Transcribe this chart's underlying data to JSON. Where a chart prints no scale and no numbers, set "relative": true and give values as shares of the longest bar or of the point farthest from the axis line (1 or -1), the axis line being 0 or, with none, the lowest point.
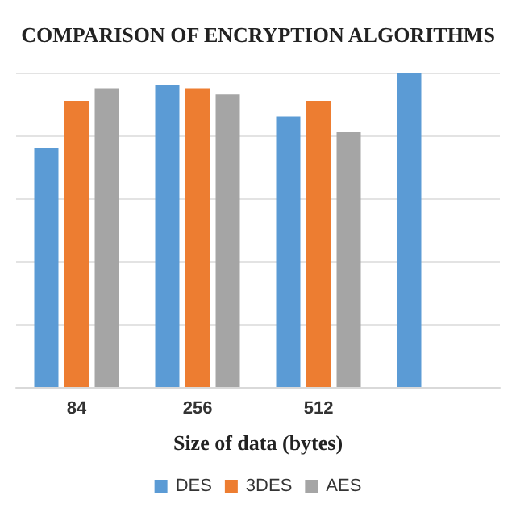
{
  "chart_data": {
    "type": "bar",
    "title": "COMPARISON OF ENCRYPTION ALGORITHMS",
    "xlabel": "Size of data (bytes)",
    "categories": [
      "84",
      "256",
      "512",
      null
    ],
    "relative": true,
    "grid": "y",
    "legend": "bottom",
    "series": [
      {
        "name": "DES",
        "color": "#5b9bd5",
        "values": [
          0.76,
          0.96,
          0.86,
          1
        ]
      },
      {
        "name": "3DES",
        "color": "#ed7d31",
        "values": [
          0.91,
          0.95,
          0.91,
          null
        ]
      },
      {
        "name": "AES",
        "color": "#a5a5a5",
        "values": [
          0.95,
          0.93,
          0.81,
          null
        ]
      }
    ]
  }
}
